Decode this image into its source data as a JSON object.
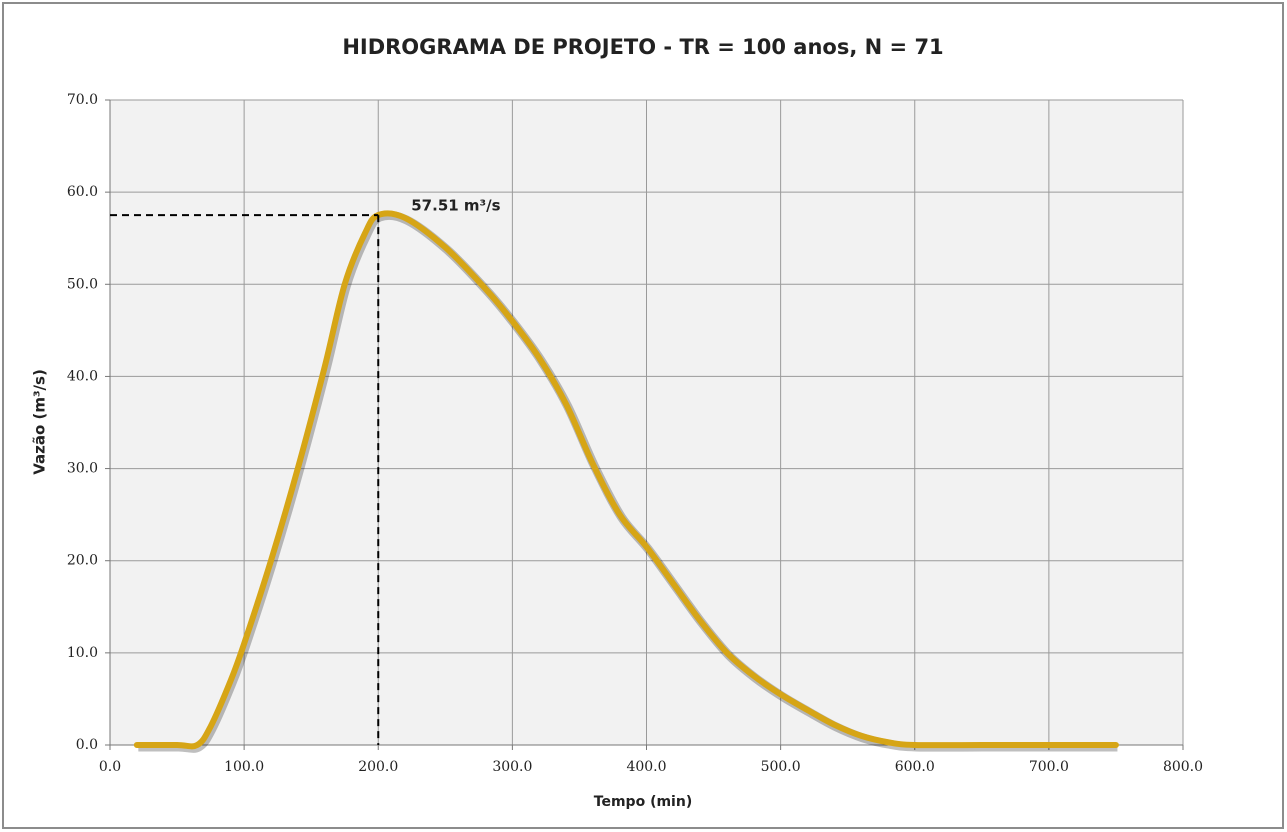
{
  "chart_data": {
    "type": "line",
    "title": "HIDROGRAMA DE PROJETO - TR = 100 anos, N = 71",
    "x_label": "Tempo (min)",
    "y_label": "Vazão (m³/s)",
    "x": [
      20,
      50,
      65,
      75,
      90,
      100,
      120,
      140,
      160,
      175,
      190,
      200,
      220,
      250,
      280,
      300,
      320,
      340,
      360,
      380,
      400,
      420,
      440,
      460,
      480,
      500,
      520,
      540,
      560,
      580,
      600,
      650,
      700,
      750
    ],
    "series": [
      {
        "name": "Vazão",
        "color": "#d6a516",
        "values": [
          0,
          0,
          0,
          2,
          7,
          11,
          20,
          30,
          41,
          50,
          55.5,
          57.51,
          57.2,
          54,
          49.5,
          46,
          42,
          37,
          30.5,
          25,
          21.5,
          17.5,
          13.5,
          10,
          7.5,
          5.5,
          3.8,
          2.2,
          1,
          0.3,
          0,
          0,
          0,
          0
        ]
      }
    ],
    "annotations": [
      {
        "text": "57.51 m³/s",
        "x": 200,
        "y": 57.51
      }
    ],
    "xlim": [
      0,
      800
    ],
    "xticks": [
      {
        "value": 0,
        "label": "0.0"
      },
      {
        "value": 100,
        "label": "100.0"
      },
      {
        "value": 200,
        "label": "200.0"
      },
      {
        "value": 300,
        "label": "300.0"
      },
      {
        "value": 400,
        "label": "400.0"
      },
      {
        "value": 500,
        "label": "500.0"
      },
      {
        "value": 600,
        "label": "600.0"
      },
      {
        "value": 700,
        "label": "700.0"
      },
      {
        "value": 800,
        "label": "800.0"
      }
    ],
    "ylim": [
      0,
      70
    ],
    "yticks": [
      {
        "value": 0,
        "label": "0.0"
      },
      {
        "value": 10,
        "label": "10.0"
      },
      {
        "value": 20,
        "label": "20.0"
      },
      {
        "value": 30,
        "label": "30.0"
      },
      {
        "value": 40,
        "label": "40.0"
      },
      {
        "value": 50,
        "label": "50.0"
      },
      {
        "value": 60,
        "label": "60.0"
      },
      {
        "value": 70,
        "label": "70.0"
      }
    ],
    "grid": true
  }
}
